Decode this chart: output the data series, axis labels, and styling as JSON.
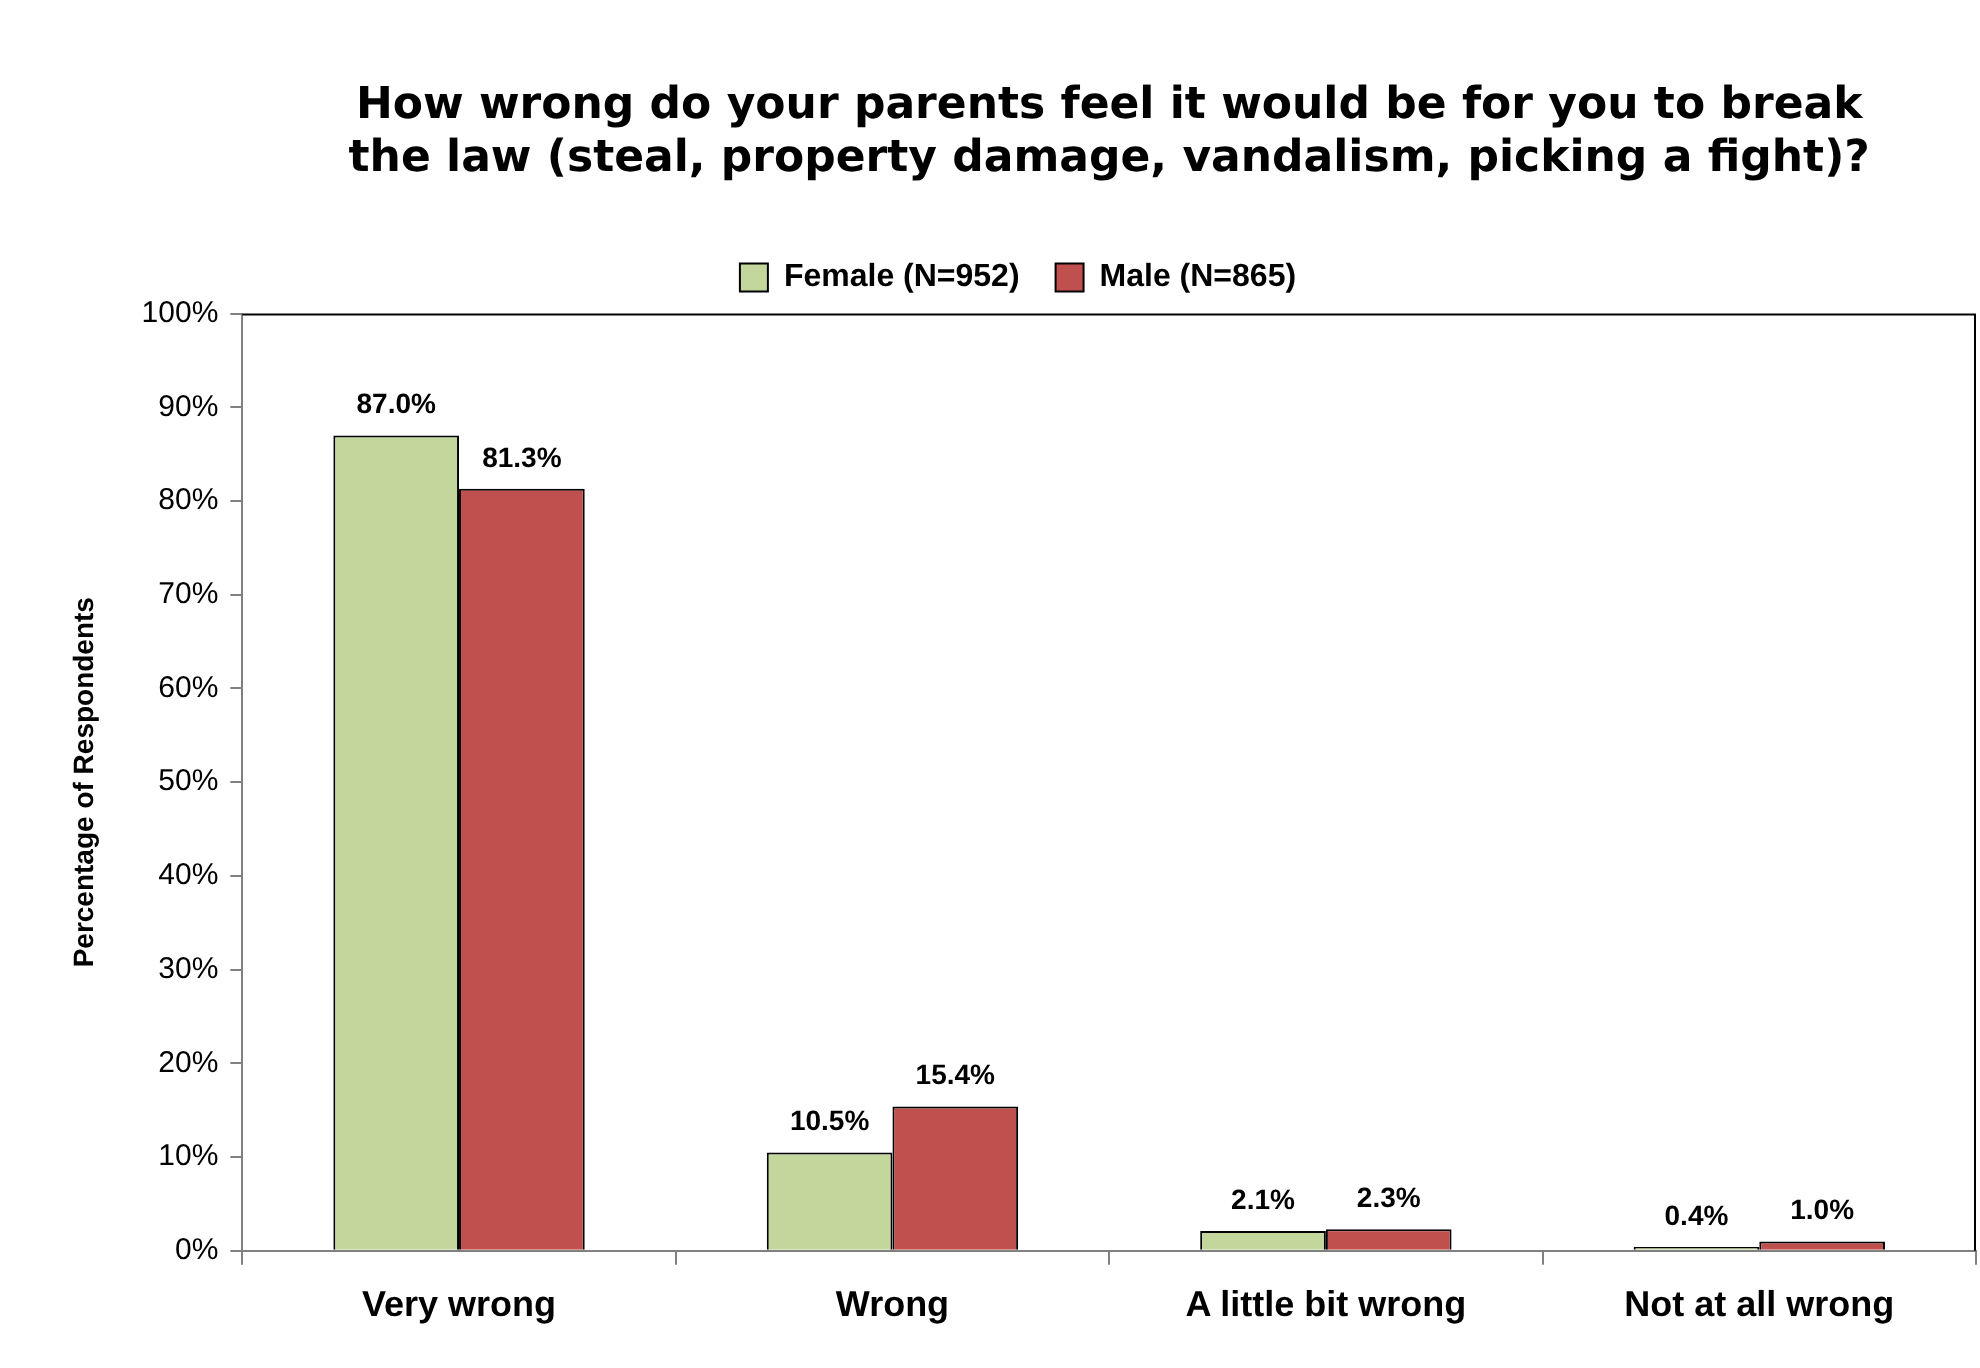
{
  "chart_data": {
    "type": "bar",
    "title": "How wrong do your parents feel it would be for you to break the law (steal, property damage, vandalism, picking a fight)?",
    "ylabel": "Percentage of Respondents",
    "categories": [
      "Very wrong",
      "Wrong",
      "A little bit wrong",
      "Not at all wrong"
    ],
    "series": [
      {
        "name": "Female (N=952)",
        "color": "#c3d69b",
        "values": [
          87.0,
          10.5,
          2.1,
          0.4
        ],
        "value_labels": [
          "87.0%",
          "10.5%",
          "2.1%",
          "0.4%"
        ]
      },
      {
        "name": "Male (N=865)",
        "color": "#c0504d",
        "values": [
          81.3,
          15.4,
          2.3,
          1.0
        ],
        "value_labels": [
          "81.3%",
          "15.4%",
          "2.3%",
          "1.0%"
        ]
      }
    ],
    "ylim": [
      0,
      100
    ],
    "yticks": [
      {
        "value": 0,
        "label": "0%"
      },
      {
        "value": 10,
        "label": "10%"
      },
      {
        "value": 20,
        "label": "20%"
      },
      {
        "value": 30,
        "label": "30%"
      },
      {
        "value": 40,
        "label": "40%"
      },
      {
        "value": 50,
        "label": "50%"
      },
      {
        "value": 60,
        "label": "60%"
      },
      {
        "value": 70,
        "label": "70%"
      },
      {
        "value": 80,
        "label": "80%"
      },
      {
        "value": 90,
        "label": "90%"
      },
      {
        "value": 100,
        "label": "100%"
      }
    ],
    "grid": false,
    "legend": "top"
  }
}
